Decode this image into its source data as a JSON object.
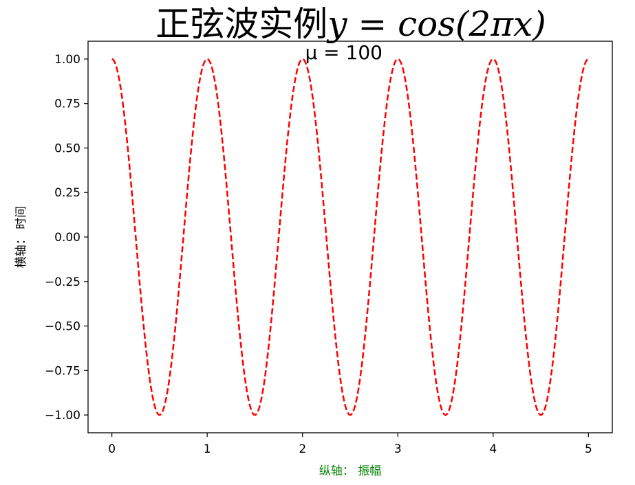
{
  "chart_data": {
    "type": "line",
    "title": "正弦波实例y = cos(2πx)",
    "title_parts": {
      "cjk": "正弦波实例",
      "math": "y = cos(2πx)"
    },
    "annotation": {
      "text": "μ = 100",
      "x": 2.0,
      "y": 1.0
    },
    "xlabel": "纵轴： 振幅",
    "ylabel": "横轴： 时间",
    "xlim": [
      -0.25,
      5.25
    ],
    "ylim": [
      -1.1,
      1.1
    ],
    "x_ticks": [
      0,
      1,
      2,
      3,
      4,
      5
    ],
    "x_tick_labels": [
      "0",
      "1",
      "2",
      "3",
      "4",
      "5"
    ],
    "y_ticks": [
      1.0,
      0.75,
      0.5,
      0.25,
      0.0,
      -0.25,
      -0.5,
      -0.75,
      -1.0
    ],
    "y_tick_labels": [
      "1.00",
      "0.75",
      "0.50",
      "0.25",
      "0.00",
      "−0.25",
      "−0.50",
      "−0.75",
      "−1.00"
    ],
    "grid": false,
    "series": [
      {
        "function": "cos(2πx)",
        "x_start": 0,
        "x_end": 4.99,
        "x_step": 0.01,
        "line_style": "dashed",
        "color": "#ff0000"
      }
    ],
    "colors": {
      "line": "#ff0000",
      "xlabel": "#008000",
      "axes": "#000000"
    }
  }
}
